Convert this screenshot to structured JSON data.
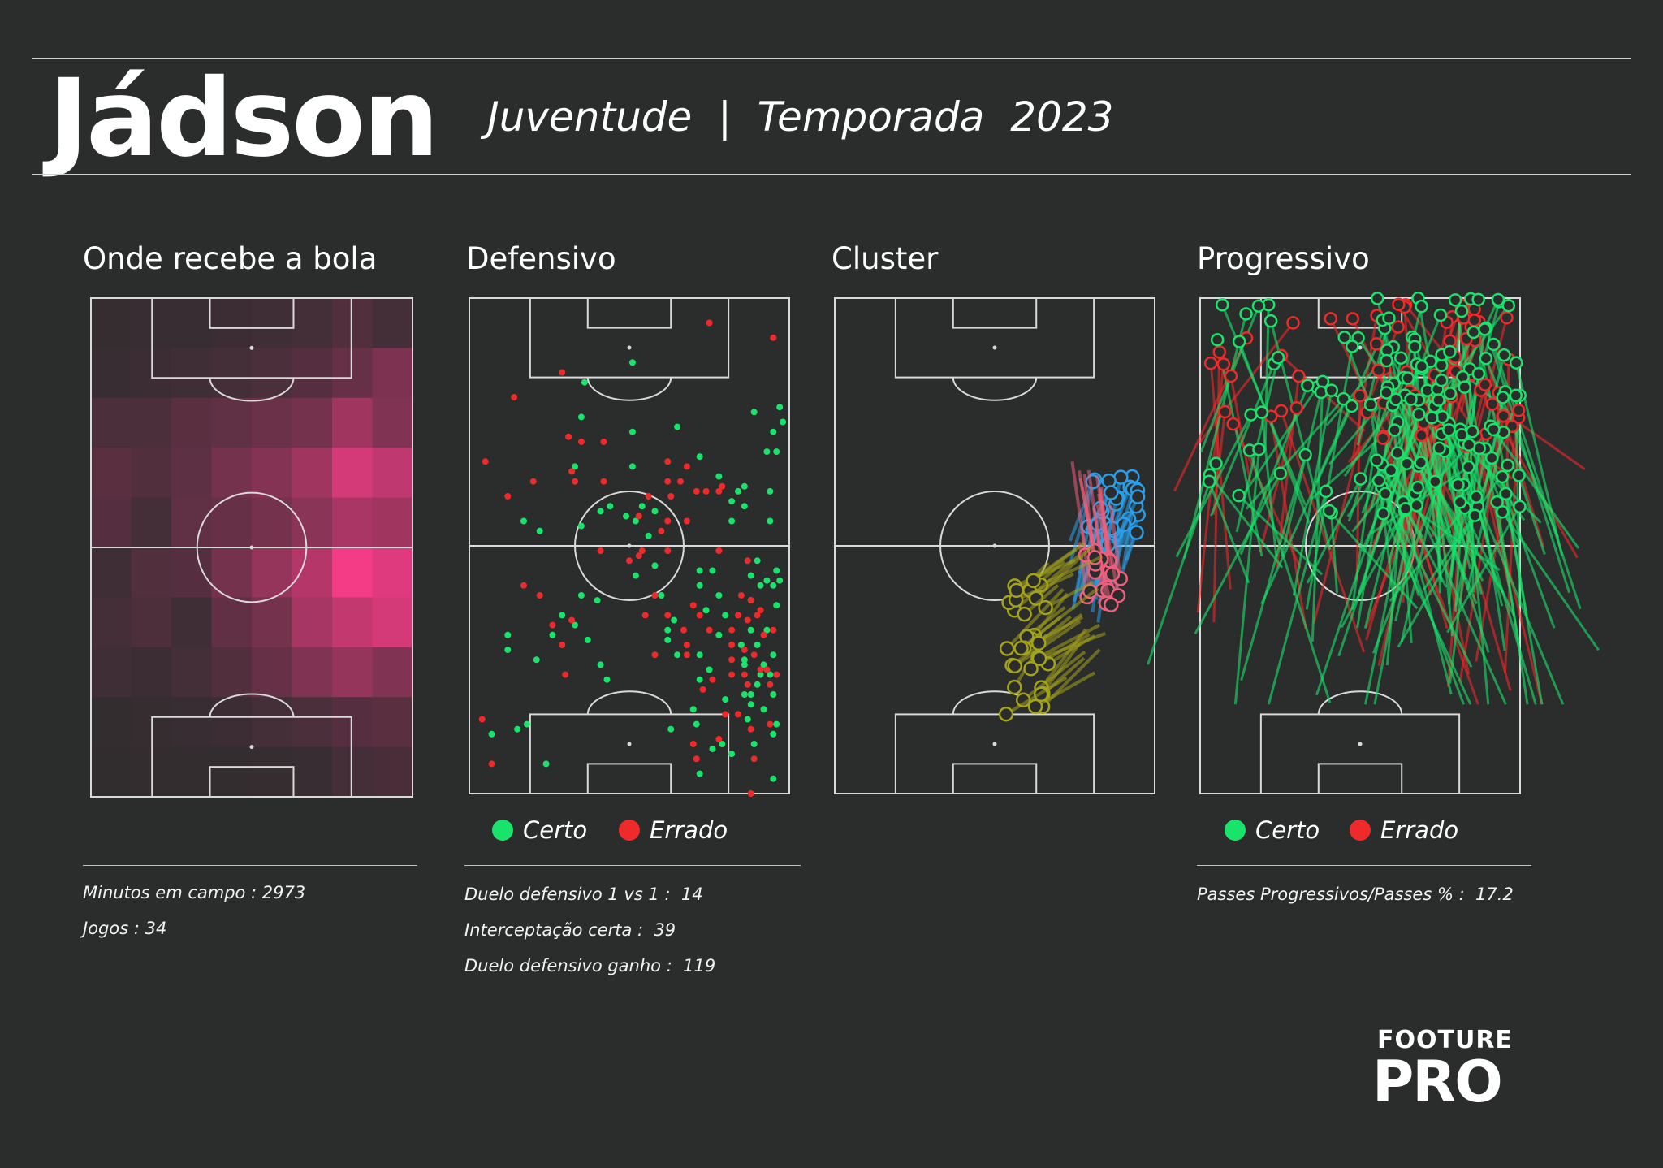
{
  "header": {
    "player": "Jádson",
    "subtitle": "Juventude  |  Temporada  2023"
  },
  "panels": {
    "heatmap": {
      "title": "Onde recebe a bola",
      "stats": [
        "Minutos em campo : 2973",
        "Jogos : 34"
      ]
    },
    "defensive": {
      "title": "Defensivo",
      "legend": [
        {
          "label": "Certo",
          "color": "#19e36a"
        },
        {
          "label": "Errado",
          "color": "#ee2a2a"
        }
      ],
      "stats": [
        "Duelo defensivo 1 vs 1 :  14",
        "Interceptação certa :  39",
        "Duelo defensivo ganho :  119"
      ]
    },
    "cluster": {
      "title": "Cluster",
      "colors": [
        "#2b9ee8",
        "#ef5f7c",
        "#a3a31c"
      ]
    },
    "progressive": {
      "title": "Progressivo",
      "legend": [
        {
          "label": "Certo",
          "color": "#19e36a"
        },
        {
          "label": "Errado",
          "color": "#ee2a2a"
        }
      ],
      "stats": [
        "Passes Progressivos/Passes % :  17.2"
      ]
    }
  },
  "logo": {
    "top": "FOOTURE",
    "bottom": "PRO"
  },
  "chart_data": [
    {
      "type": "heatmap",
      "title": "Onde recebe a bola",
      "colormap": [
        "#2b2c2c",
        "#ff3d8b"
      ],
      "grid_rows_top_to_bottom": [
        [
          0.05,
          0.06,
          0.06,
          0.08,
          0.1,
          0.12,
          0.18,
          0.12
        ],
        [
          0.06,
          0.08,
          0.1,
          0.12,
          0.15,
          0.2,
          0.28,
          0.38
        ],
        [
          0.15,
          0.15,
          0.22,
          0.25,
          0.3,
          0.35,
          0.55,
          0.4
        ],
        [
          0.22,
          0.18,
          0.24,
          0.35,
          0.42,
          0.55,
          0.8,
          0.7
        ],
        [
          0.2,
          0.12,
          0.25,
          0.28,
          0.35,
          0.45,
          0.6,
          0.55
        ],
        [
          0.1,
          0.18,
          0.2,
          0.35,
          0.5,
          0.65,
          0.95,
          0.85
        ],
        [
          0.12,
          0.16,
          0.1,
          0.26,
          0.35,
          0.58,
          0.72,
          0.8
        ],
        [
          0.1,
          0.08,
          0.12,
          0.18,
          0.28,
          0.4,
          0.5,
          0.4
        ],
        [
          0.04,
          0.05,
          0.06,
          0.08,
          0.12,
          0.15,
          0.2,
          0.22
        ],
        [
          0.03,
          0.04,
          0.04,
          0.04,
          0.05,
          0.06,
          0.12,
          0.14
        ]
      ]
    },
    {
      "type": "scatter",
      "title": "Defensivo",
      "xlim": [
        0,
        100
      ],
      "ylim": [
        0,
        100
      ],
      "series": [
        {
          "name": "Certo",
          "points": [
            [
              51,
              87
            ],
            [
              36,
              83
            ],
            [
              51,
              73
            ],
            [
              35,
              76
            ],
            [
              33,
              66
            ],
            [
              51,
              66
            ],
            [
              65,
              74
            ],
            [
              72,
              68
            ],
            [
              78,
              64
            ],
            [
              95,
              73
            ],
            [
              98,
              75
            ],
            [
              89,
              77
            ],
            [
              97,
              78
            ],
            [
              93,
              69
            ],
            [
              96,
              69
            ],
            [
              84,
              61
            ],
            [
              82,
              59
            ],
            [
              82,
              55
            ],
            [
              86,
              58
            ],
            [
              86,
              62
            ],
            [
              94,
              61
            ],
            [
              94,
              55
            ],
            [
              54,
              58
            ],
            [
              49,
              56
            ],
            [
              52,
              55
            ],
            [
              58,
              57
            ],
            [
              56,
              52
            ],
            [
              35,
              54
            ],
            [
              17,
              55
            ],
            [
              22,
              53
            ],
            [
              41,
              57
            ],
            [
              44,
              58
            ],
            [
              58,
              46
            ],
            [
              52,
              44
            ],
            [
              40,
              39
            ],
            [
              35,
              40
            ],
            [
              33,
              34
            ],
            [
              29,
              36
            ],
            [
              37,
              31
            ],
            [
              62,
              31
            ],
            [
              65,
              28
            ],
            [
              62,
              33
            ],
            [
              64,
              35
            ],
            [
              60,
              40
            ],
            [
              72,
              42
            ],
            [
              72,
              45
            ],
            [
              76,
              45
            ],
            [
              78,
              40
            ],
            [
              80,
              36
            ],
            [
              74,
              37
            ],
            [
              85,
              30
            ],
            [
              88,
              33
            ],
            [
              88,
              39
            ],
            [
              88,
              44
            ],
            [
              90,
              47
            ],
            [
              91,
              42
            ],
            [
              93,
              43
            ],
            [
              95,
              42
            ],
            [
              97,
              43
            ],
            [
              96,
              45
            ],
            [
              96,
              38
            ],
            [
              93,
              33
            ],
            [
              95,
              28
            ],
            [
              92,
              26
            ],
            [
              94,
              24
            ],
            [
              90,
              22
            ],
            [
              88,
              20
            ],
            [
              88,
              18
            ],
            [
              92,
              17
            ],
            [
              78,
              32
            ],
            [
              72,
              28
            ],
            [
              75,
              25
            ],
            [
              80,
              19
            ],
            [
              70,
              17
            ],
            [
              72,
              23
            ],
            [
              86,
              27
            ],
            [
              86,
              26
            ],
            [
              90,
              30
            ],
            [
              76,
              9
            ],
            [
              71,
              14
            ],
            [
              12,
              29
            ],
            [
              12,
              32
            ],
            [
              21,
              27
            ],
            [
              41,
              26
            ],
            [
              43,
              23
            ],
            [
              26,
              32
            ],
            [
              15,
              13
            ],
            [
              7,
              12
            ],
            [
              18,
              14
            ],
            [
              24,
              6
            ],
            [
              72,
              4
            ],
            [
              95,
              3
            ],
            [
              95,
              12
            ],
            [
              82,
              8
            ],
            [
              63,
              13
            ],
            [
              95,
              20
            ],
            [
              96,
              14
            ],
            [
              91,
              24
            ],
            [
              87,
              15
            ],
            [
              89,
              10
            ],
            [
              79,
              10
            ],
            [
              86,
              20
            ]
          ]
        },
        {
          "name": "Errado",
          "points": [
            [
              75,
              95
            ],
            [
              95,
              92
            ],
            [
              29,
              85
            ],
            [
              14,
              80
            ],
            [
              35,
              71
            ],
            [
              31,
              72
            ],
            [
              42,
              71
            ],
            [
              32,
              65
            ],
            [
              62,
              67
            ],
            [
              62,
              63
            ],
            [
              66,
              63
            ],
            [
              68,
              66
            ],
            [
              63,
              60
            ],
            [
              56,
              60
            ],
            [
              71,
              61
            ],
            [
              74,
              61
            ],
            [
              79,
              62
            ],
            [
              78,
              61
            ],
            [
              62,
              55
            ],
            [
              68,
              55
            ],
            [
              60,
              53
            ],
            [
              54,
              49
            ],
            [
              53,
              48
            ],
            [
              62,
              49
            ],
            [
              5,
              67
            ],
            [
              12,
              60
            ],
            [
              20,
              63
            ],
            [
              33,
              63
            ],
            [
              42,
              63
            ],
            [
              53,
              56
            ],
            [
              78,
              49
            ],
            [
              87,
              47
            ],
            [
              58,
              40
            ],
            [
              62,
              36
            ],
            [
              70,
              38
            ],
            [
              75,
              33
            ],
            [
              67,
              33
            ],
            [
              82,
              30
            ],
            [
              82,
              27
            ],
            [
              55,
              36
            ],
            [
              58,
              28
            ],
            [
              68,
              30
            ],
            [
              84,
              36
            ],
            [
              85,
              40
            ],
            [
              88,
              39
            ],
            [
              87,
              35
            ],
            [
              91,
              37
            ],
            [
              92,
              32
            ],
            [
              90,
              36
            ],
            [
              89,
              28
            ],
            [
              96,
              24
            ],
            [
              91,
              25
            ],
            [
              86,
              29
            ],
            [
              86,
              24
            ],
            [
              82,
              24
            ],
            [
              84,
              16
            ],
            [
              80,
              16
            ],
            [
              78,
              11
            ],
            [
              87,
              22
            ],
            [
              88,
              13
            ],
            [
              94,
              22
            ],
            [
              26,
              34
            ],
            [
              32,
              35
            ],
            [
              17,
              42
            ],
            [
              22,
              40
            ],
            [
              29,
              30
            ],
            [
              30,
              24
            ],
            [
              4,
              15
            ],
            [
              7,
              6
            ],
            [
              70,
              10
            ],
            [
              71,
              7
            ],
            [
              89,
              7
            ],
            [
              94,
              14
            ],
            [
              93,
              25
            ],
            [
              73,
              21
            ],
            [
              76,
              23
            ],
            [
              72,
              36
            ],
            [
              95,
              33
            ],
            [
              78,
              49
            ],
            [
              41,
              49
            ],
            [
              50,
              47
            ],
            [
              68,
              28
            ],
            [
              82,
              33
            ],
            [
              88,
              0
            ]
          ]
        }
      ]
    },
    {
      "type": "scatter",
      "title": "Cluster",
      "xlim": [
        0,
        100
      ],
      "ylim": [
        0,
        100
      ],
      "series": [
        {
          "color": "#2b9ee8",
          "centroid": [
            87,
            57
          ],
          "spread": [
            8,
            7
          ],
          "direction": [
            -0.08,
            -0.18
          ],
          "count": 36
        },
        {
          "color": "#ef5f7c",
          "centroid": [
            84,
            44
          ],
          "spread": [
            6,
            6
          ],
          "direction": [
            -0.05,
            0.2
          ],
          "count": 20
        },
        {
          "color": "#a3a31c",
          "centroid": [
            60,
            29
          ],
          "spread": [
            7,
            14
          ],
          "direction": [
            0.22,
            0.12
          ],
          "count": 32
        }
      ]
    },
    {
      "type": "scatter",
      "title": "Progressivo",
      "xlim": [
        0,
        100
      ],
      "ylim": [
        0,
        100
      ],
      "series": [
        {
          "name": "Certo",
          "count": 150,
          "start_y_range": [
            56,
            100
          ],
          "start_x_range": [
            2,
            100
          ],
          "direction": "down"
        },
        {
          "name": "Errado",
          "count": 70,
          "start_y_range": [
            70,
            100
          ],
          "start_x_range": [
            2,
            100
          ],
          "direction": "down"
        }
      ]
    }
  ]
}
